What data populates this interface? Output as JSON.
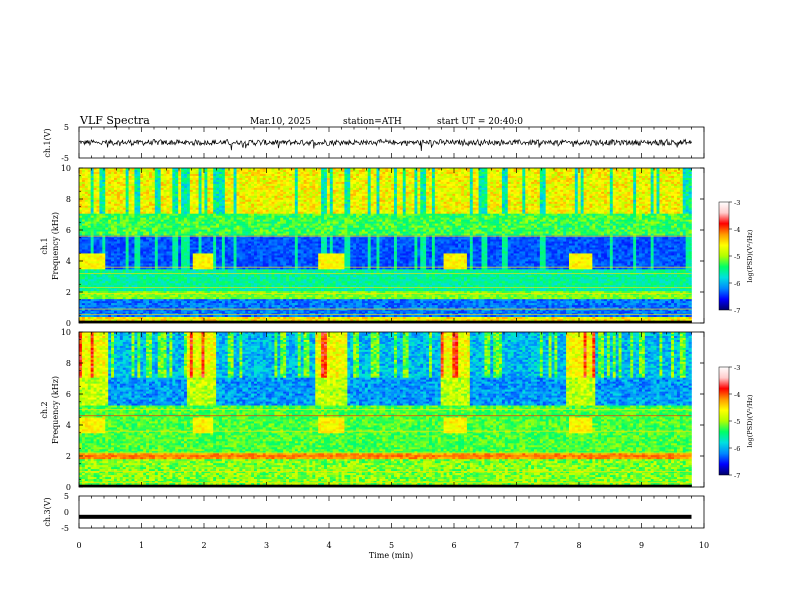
{
  "header": {
    "title": "VLF  Spectra",
    "date": "Mar.10, 2025",
    "station": "station=ATH",
    "start": "start  UT  =   20:40:0"
  },
  "chart_data": [
    {
      "id": "ch1_waveform",
      "type": "line",
      "ylabel": "ch.1(V)",
      "ylim": [
        -5,
        5
      ],
      "yticks": [
        "5",
        "-5"
      ],
      "xlim": [
        0,
        10
      ],
      "x_extent": [
        0,
        9.8
      ],
      "series": [
        {
          "approx_level": 0,
          "approx_amplitude": 1.2,
          "color": "#000000"
        }
      ]
    },
    {
      "id": "ch1_spectrogram",
      "type": "heatmap",
      "ylabel": "ch.1",
      "ylabel2": "Frequency  (kHz)",
      "ylim": [
        0,
        10
      ],
      "yticks": [
        "0",
        "2",
        "4",
        "6",
        "8",
        "10"
      ],
      "xlim": [
        0,
        10
      ],
      "x_extent": [
        0,
        9.8
      ],
      "bursts": [
        {
          "x0": 0.0,
          "x1": 0.4,
          "f0": 3.5,
          "f1": 4.5
        },
        {
          "x0": 1.8,
          "x1": 2.15,
          "f0": 3.5,
          "f1": 4.5
        },
        {
          "x0": 3.85,
          "x1": 4.25,
          "f0": 3.5,
          "f1": 4.5
        },
        {
          "x0": 5.85,
          "x1": 6.2,
          "f0": 3.5,
          "f1": 4.5
        },
        {
          "x0": 7.85,
          "x1": 8.2,
          "f0": 3.5,
          "f1": 4.5
        }
      ]
    },
    {
      "id": "ch2_spectrogram",
      "type": "heatmap",
      "ylabel": "ch.2",
      "ylabel2": "Frequency  (kHz)",
      "ylim": [
        0,
        10
      ],
      "yticks": [
        "0",
        "2",
        "4",
        "6",
        "8",
        "10"
      ],
      "xlim": [
        0,
        10
      ],
      "x_extent": [
        0,
        9.8
      ],
      "bursts": [
        {
          "x0": 0.0,
          "x1": 0.4,
          "f0": 3.5,
          "f1": 4.5
        },
        {
          "x0": 1.8,
          "x1": 2.15,
          "f0": 3.5,
          "f1": 4.5
        },
        {
          "x0": 3.85,
          "x1": 4.25,
          "f0": 3.5,
          "f1": 4.5
        },
        {
          "x0": 5.85,
          "x1": 6.2,
          "f0": 3.5,
          "f1": 4.5
        },
        {
          "x0": 7.85,
          "x1": 8.2,
          "f0": 3.5,
          "f1": 4.5
        }
      ]
    },
    {
      "id": "ch3_waveform",
      "type": "line",
      "ylabel": "ch.3(V)",
      "ylim": [
        -5,
        5
      ],
      "yticks": [
        "5",
        "0",
        "-5"
      ],
      "xlim": [
        0,
        10
      ],
      "x_extent": [
        0,
        9.8
      ],
      "series": [
        {
          "approx_level": -1.5,
          "color": "#000000"
        }
      ]
    }
  ],
  "xaxis": {
    "label": "Time  (min)",
    "ticks": [
      "0",
      "1",
      "2",
      "3",
      "4",
      "5",
      "6",
      "7",
      "8",
      "9",
      "10"
    ]
  },
  "colorbar": {
    "label": "log(PSD)(V²/Hz)",
    "range": [
      -7,
      -3
    ],
    "ticks": [
      "-3",
      "-4",
      "-5",
      "-6",
      "-7"
    ],
    "colors": [
      "#000066",
      "#0000ff",
      "#0088ff",
      "#00e0e0",
      "#00ff66",
      "#b0ff00",
      "#ffff00",
      "#ff9900",
      "#ff0000",
      "#ffcccc",
      "#ffffff"
    ]
  }
}
